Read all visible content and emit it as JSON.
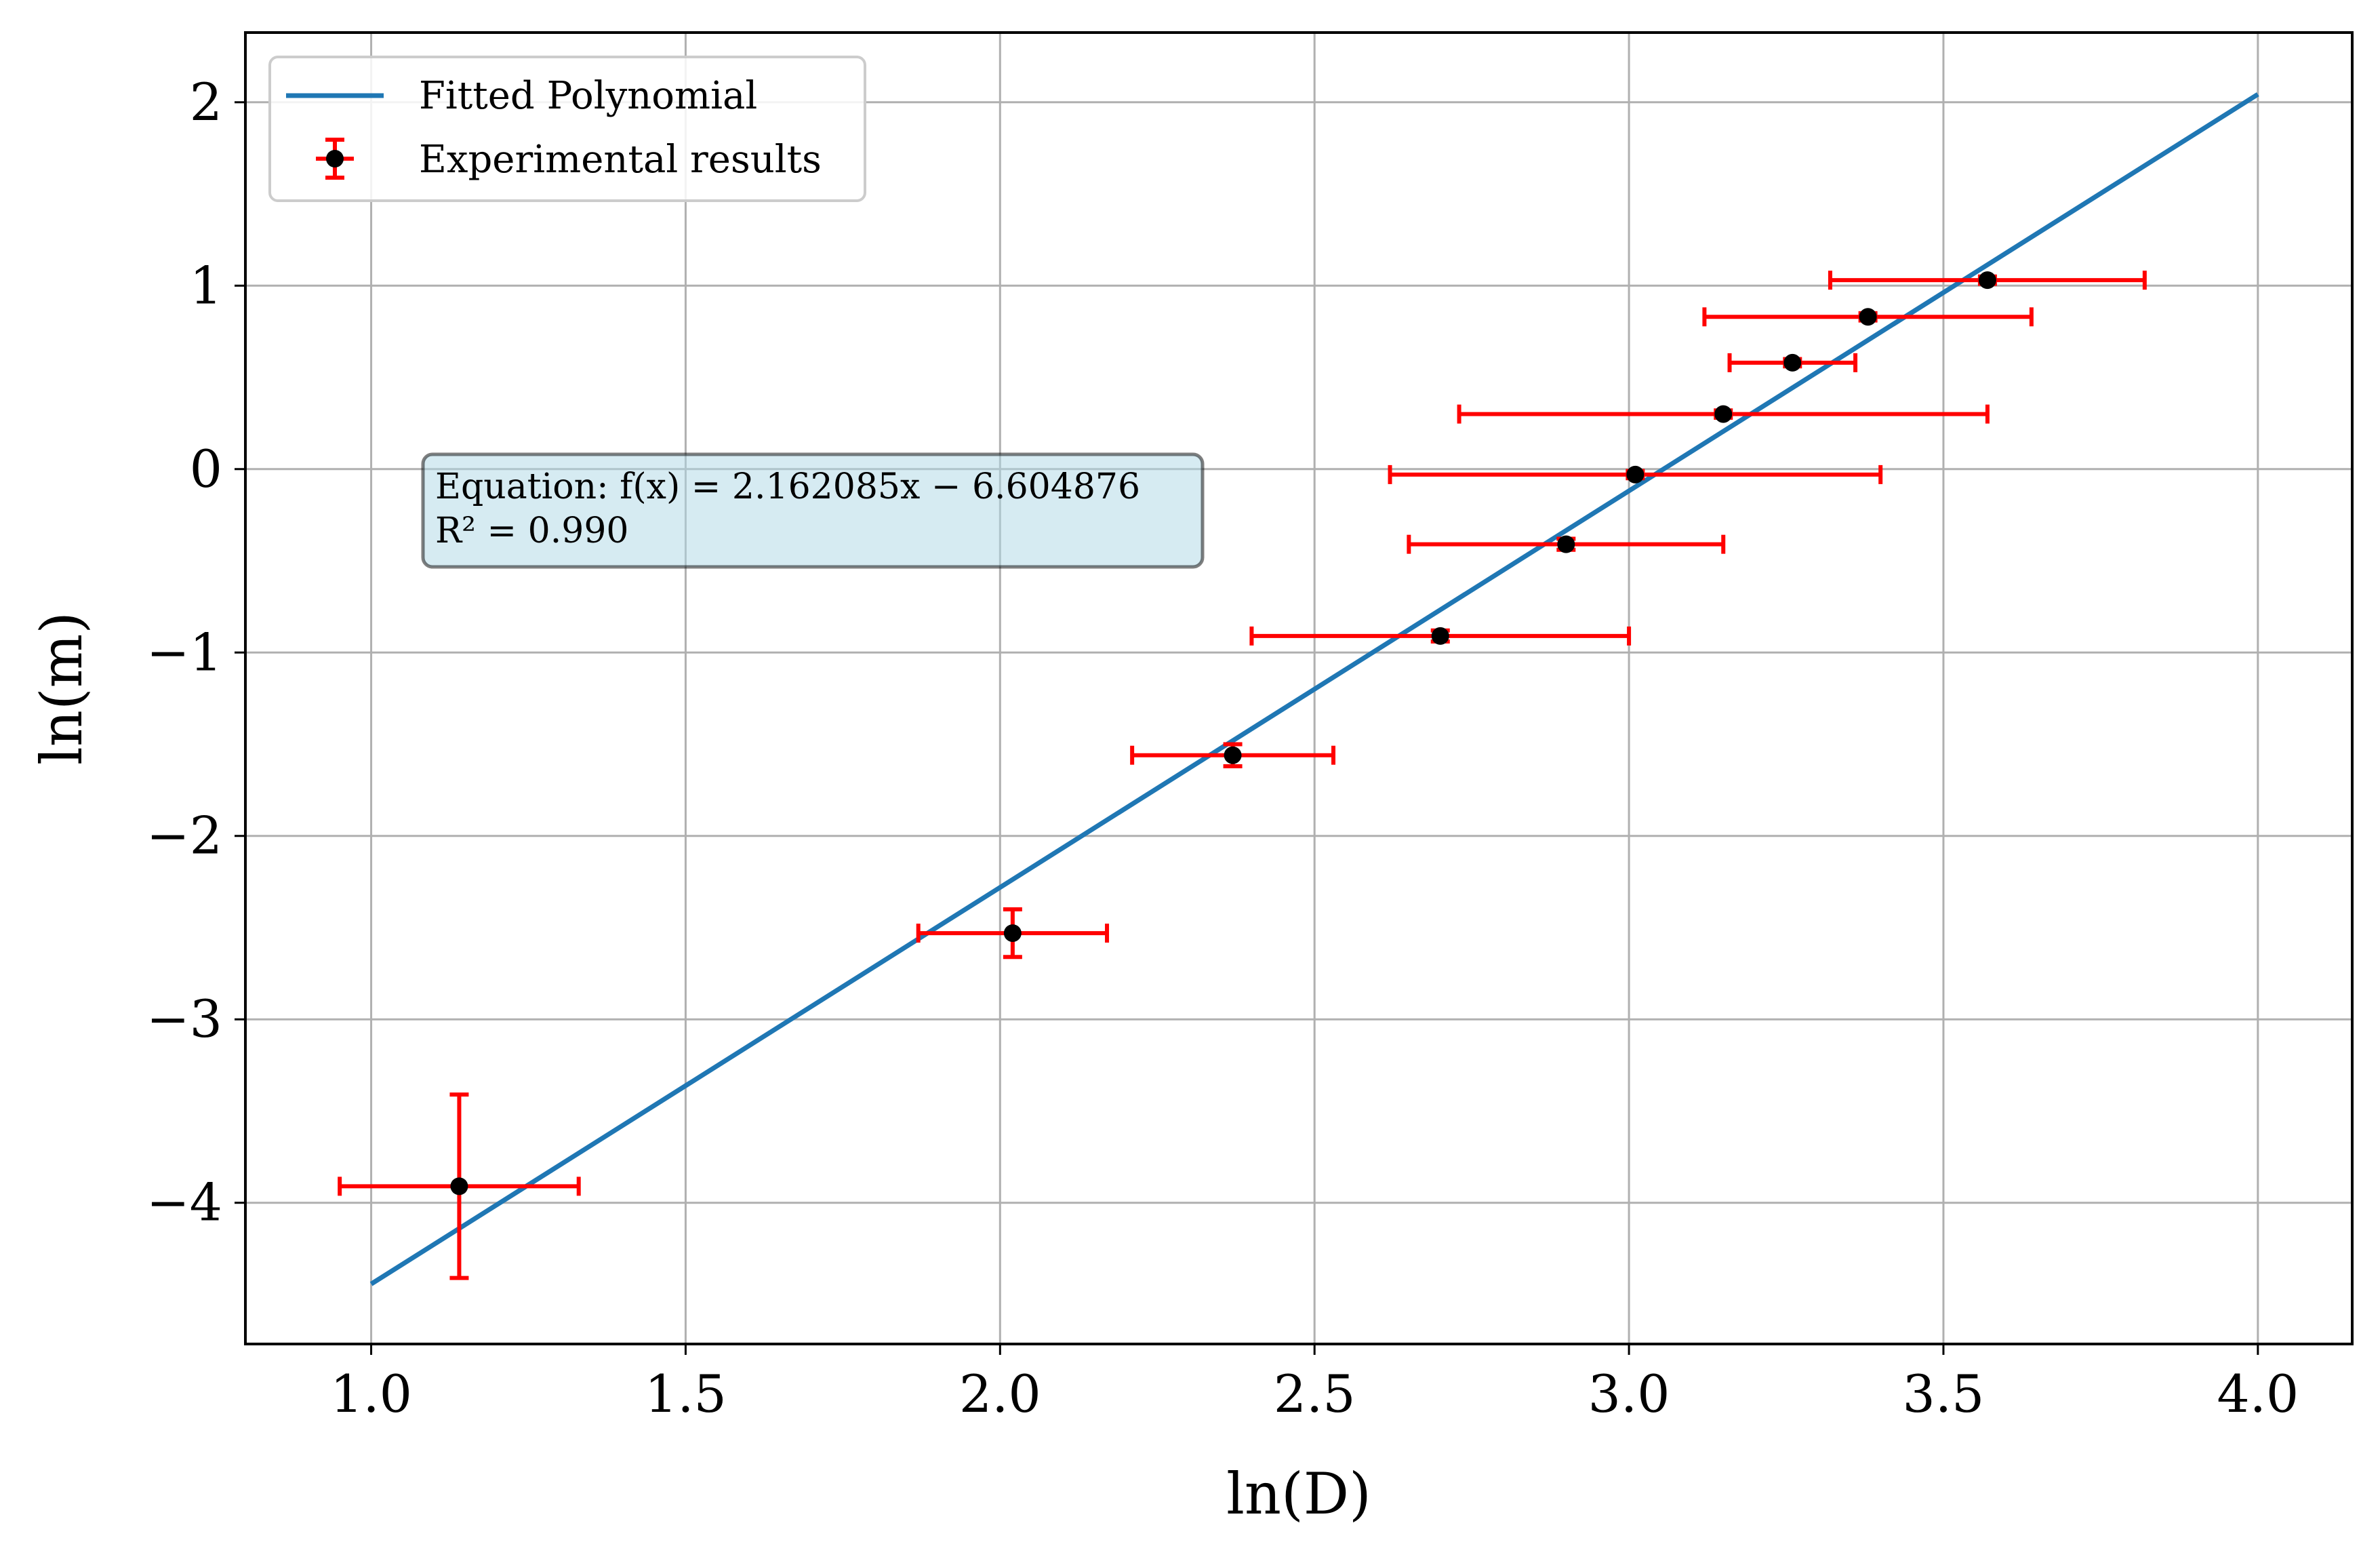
{
  "chart_data": {
    "type": "scatter",
    "xlabel": "ln(D)",
    "ylabel": "ln(m)",
    "xlim": [
      0.8,
      4.15
    ],
    "ylim": [
      -4.77,
      2.38
    ],
    "xticks": [
      1.0,
      1.5,
      2.0,
      2.5,
      3.0,
      3.5,
      4.0
    ],
    "xtick_labels": [
      "1.0",
      "1.5",
      "2.0",
      "2.5",
      "3.0",
      "3.5",
      "4.0"
    ],
    "yticks": [
      2,
      1,
      0,
      -1,
      -2,
      -3,
      -4
    ],
    "ytick_labels": [
      "2",
      "1",
      "0",
      "−1",
      "−2",
      "−3",
      "−4"
    ],
    "grid": true,
    "legend_position": "top-left",
    "series": [
      {
        "name": "Fitted Polynomial",
        "kind": "line",
        "color": "#1f77b4",
        "slope": 2.162085,
        "intercept": -6.604876,
        "x_range": [
          1.0,
          4.0
        ]
      },
      {
        "name": "Experimental results",
        "kind": "errorbar",
        "marker_color": "#000000",
        "error_color": "#ff0000",
        "points": [
          {
            "x": 1.14,
            "y": -3.91,
            "xerr": 0.19,
            "yerr": 0.5
          },
          {
            "x": 2.02,
            "y": -2.53,
            "xerr": 0.15,
            "yerr": 0.13
          },
          {
            "x": 2.37,
            "y": -1.56,
            "xerr": 0.16,
            "yerr": 0.06
          },
          {
            "x": 2.7,
            "y": -0.91,
            "xerr": 0.3,
            "yerr": 0.03
          },
          {
            "x": 2.9,
            "y": -0.41,
            "xerr": 0.25,
            "yerr": 0.03
          },
          {
            "x": 3.01,
            "y": -0.03,
            "xerr": 0.39,
            "yerr": 0.02
          },
          {
            "x": 3.15,
            "y": 0.3,
            "xerr": 0.42,
            "yerr": 0.02
          },
          {
            "x": 3.26,
            "y": 0.58,
            "xerr": 0.1,
            "yerr": 0.02
          },
          {
            "x": 3.38,
            "y": 0.83,
            "xerr": 0.26,
            "yerr": 0.02
          },
          {
            "x": 3.57,
            "y": 1.03,
            "xerr": 0.25,
            "yerr": 0.02
          }
        ]
      }
    ],
    "annotation": {
      "line1": "Equation: f(x) = 2.162085x − 6.604876",
      "line2": "R² = 0.990",
      "background": "#add8e6"
    }
  }
}
